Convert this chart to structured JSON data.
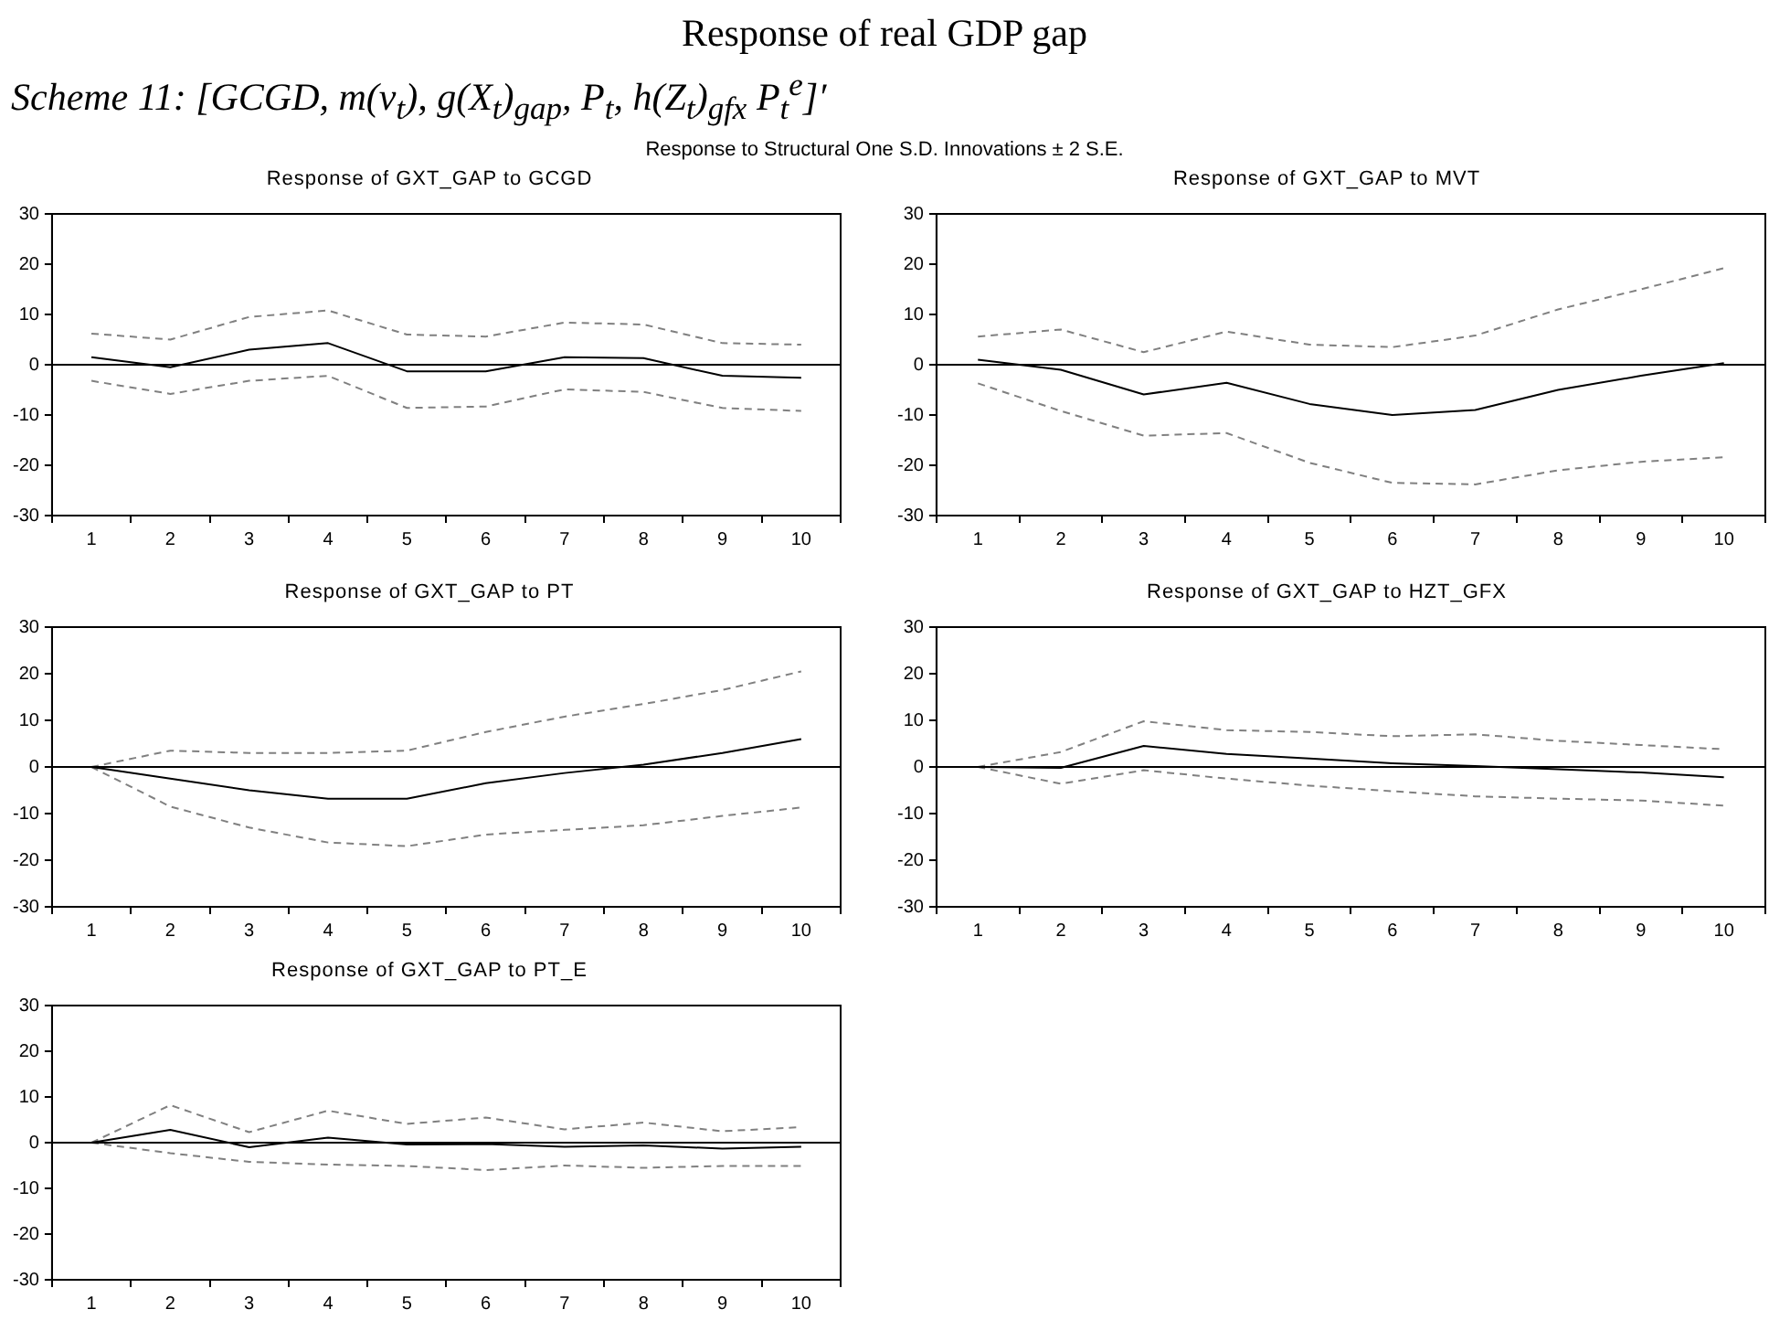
{
  "chart_data": [
    {
      "type": "line",
      "title": "Response of GXT_GAP to GCGD",
      "annotations": [
        "Response of real GDP gap",
        "Scheme 11: [GCGD, m(v$_{t}$), g(X$_{t}$)$_{gap}$, P$_{t}$, h(Z$_{t}$)$_{gfx}$ P$_{t}$$^{e}$]′",
        "Response to Structural One S.D. Innovations ± 2 S.E."
      ],
      "categories": [
        "1",
        "2",
        "3",
        "4",
        "5",
        "6",
        "7",
        "8",
        "9",
        "10"
      ],
      "ylim": [
        -30,
        30
      ],
      "yticks": [
        -30,
        -20,
        -10,
        0,
        10,
        20,
        30
      ],
      "grid": false,
      "ref_lines": [
        {
          "axis": "y",
          "value": 0,
          "color": "#000000"
        }
      ],
      "series": [
        {
          "color": "#000000",
          "line_style": "solid",
          "values": [
            1.5,
            -0.5,
            3,
            4.3,
            -1.3,
            -1.3,
            1.5,
            1.3,
            -2.2,
            -2.6
          ]
        },
        {
          "color": "#808080",
          "line_style": "dashed",
          "values": [
            6.2,
            5,
            9.5,
            10.8,
            6,
            5.6,
            8.4,
            8,
            4.3,
            4
          ]
        },
        {
          "color": "#808080",
          "line_style": "dashed",
          "values": [
            -3.2,
            -5.8,
            -3.2,
            -2.2,
            -8.6,
            -8.3,
            -4.9,
            -5.4,
            -8.6,
            -9.2
          ]
        }
      ]
    },
    {
      "type": "line",
      "title": "Response of GXT_GAP to MVT",
      "categories": [
        "1",
        "2",
        "3",
        "4",
        "5",
        "6",
        "7",
        "8",
        "9",
        "10"
      ],
      "ylim": [
        -30,
        30
      ],
      "yticks": [
        -30,
        -20,
        -10,
        0,
        10,
        20,
        30
      ],
      "grid": false,
      "ref_lines": [
        {
          "axis": "y",
          "value": 0,
          "color": "#000000"
        }
      ],
      "series": [
        {
          "color": "#000000",
          "line_style": "solid",
          "values": [
            1,
            -1,
            -5.9,
            -3.6,
            -7.8,
            -10,
            -9,
            -5,
            -2.2,
            0.3
          ]
        },
        {
          "color": "#808080",
          "line_style": "dashed",
          "values": [
            5.6,
            7,
            2.5,
            6.6,
            4,
            3.5,
            5.8,
            11,
            15,
            19.2
          ]
        },
        {
          "color": "#808080",
          "line_style": "dashed",
          "values": [
            -3.7,
            -9.2,
            -14.1,
            -13.6,
            -19.5,
            -23.5,
            -23.8,
            -21,
            -19.3,
            -18.4
          ]
        }
      ]
    },
    {
      "type": "line",
      "title": "Response of GXT_GAP to PT",
      "categories": [
        "1",
        "2",
        "3",
        "4",
        "5",
        "6",
        "7",
        "8",
        "9",
        "10"
      ],
      "ylim": [
        -30,
        30
      ],
      "yticks": [
        -30,
        -20,
        -10,
        0,
        10,
        20,
        30
      ],
      "grid": false,
      "ref_lines": [
        {
          "axis": "y",
          "value": 0,
          "color": "#000000"
        }
      ],
      "series": [
        {
          "color": "#000000",
          "line_style": "solid",
          "values": [
            0,
            -2.5,
            -5,
            -6.8,
            -6.8,
            -3.5,
            -1.3,
            0.5,
            3,
            6
          ]
        },
        {
          "color": "#808080",
          "line_style": "dashed",
          "values": [
            0,
            3.5,
            3,
            3,
            3.5,
            7.5,
            10.8,
            13.5,
            16.5,
            20.5
          ]
        },
        {
          "color": "#808080",
          "line_style": "dashed",
          "values": [
            0,
            -8.5,
            -13,
            -16.2,
            -17,
            -14.5,
            -13.5,
            -12.5,
            -10.5,
            -8.7
          ]
        }
      ]
    },
    {
      "type": "line",
      "title": "Response of GXT_GAP to HZT_GFX",
      "categories": [
        "1",
        "2",
        "3",
        "4",
        "5",
        "6",
        "7",
        "8",
        "9",
        "10"
      ],
      "ylim": [
        -30,
        30
      ],
      "yticks": [
        -30,
        -20,
        -10,
        0,
        10,
        20,
        30
      ],
      "grid": false,
      "ref_lines": [
        {
          "axis": "y",
          "value": 0,
          "color": "#000000"
        }
      ],
      "series": [
        {
          "color": "#000000",
          "line_style": "solid",
          "values": [
            0,
            -0.2,
            4.5,
            2.8,
            1.8,
            0.8,
            0.2,
            -0.5,
            -1.2,
            -2.2
          ]
        },
        {
          "color": "#808080",
          "line_style": "dashed",
          "values": [
            0,
            3.2,
            9.8,
            7.9,
            7.5,
            6.6,
            7,
            5.6,
            4.7,
            3.8
          ]
        },
        {
          "color": "#808080",
          "line_style": "dashed",
          "values": [
            0,
            -3.6,
            -0.7,
            -2.5,
            -4,
            -5.2,
            -6.3,
            -6.8,
            -7.2,
            -8.3
          ]
        }
      ]
    },
    {
      "type": "line",
      "title": "Response of GXT_GAP to PT_E",
      "categories": [
        "1",
        "2",
        "3",
        "4",
        "5",
        "6",
        "7",
        "8",
        "9",
        "10"
      ],
      "ylim": [
        -30,
        30
      ],
      "yticks": [
        -30,
        -20,
        -10,
        0,
        10,
        20,
        30
      ],
      "grid": false,
      "ref_lines": [
        {
          "axis": "y",
          "value": 0,
          "color": "#000000"
        }
      ],
      "series": [
        {
          "color": "#000000",
          "line_style": "solid",
          "values": [
            0,
            2.8,
            -1,
            1.1,
            -0.4,
            -0.3,
            -0.9,
            -0.6,
            -1.3,
            -0.9
          ]
        },
        {
          "color": "#808080",
          "line_style": "dashed",
          "values": [
            0,
            8.2,
            2.3,
            7,
            4.1,
            5.5,
            2.9,
            4.4,
            2.5,
            3.4
          ]
        },
        {
          "color": "#808080",
          "line_style": "dashed",
          "values": [
            0,
            -2.3,
            -4.2,
            -4.8,
            -5.1,
            -6,
            -5,
            -5.5,
            -5.1,
            -5.1
          ]
        }
      ]
    }
  ]
}
